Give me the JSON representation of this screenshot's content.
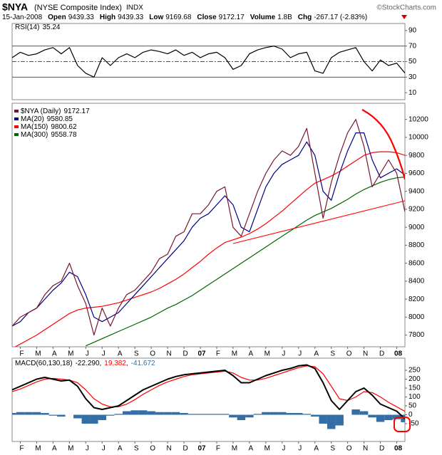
{
  "header": {
    "symbol": "$NYA",
    "name": "(NYSE Composite Index)",
    "exchange": "INDX",
    "date": "15-Jan-2008",
    "quote": [
      {
        "label": "Open",
        "value": "9439.33"
      },
      {
        "label": "High",
        "value": "9439.33"
      },
      {
        "label": "Low",
        "value": "9169.68"
      },
      {
        "label": "Close",
        "value": "9172.17"
      },
      {
        "label": "Volume",
        "value": "1.8B"
      },
      {
        "label": "Chg",
        "value": "-267.17 (-2.83%)"
      }
    ],
    "copyright": "©StockCharts.com"
  },
  "chart_data": [
    {
      "type": "line",
      "title": "RSI(14)",
      "ylim": [
        1,
        99
      ],
      "yticks": [
        90,
        70,
        50,
        30,
        10
      ],
      "levels": [
        70,
        50,
        30
      ],
      "series": [
        {
          "color": "#000000",
          "values": [
            55,
            62,
            58,
            60,
            65,
            68,
            60,
            68,
            45,
            35,
            30,
            55,
            45,
            55,
            60,
            55,
            62,
            65,
            63,
            60,
            65,
            58,
            62,
            55,
            60,
            62,
            55,
            40,
            45,
            60,
            65,
            68,
            70,
            66,
            55,
            60,
            62,
            38,
            35,
            55,
            62,
            65,
            68,
            50,
            38,
            52,
            45,
            48,
            35.24
          ]
        }
      ]
    },
    {
      "type": "line",
      "ylim": [
        7670,
        10380
      ],
      "yticks": [
        7800,
        8000,
        8200,
        8400,
        8600,
        8800,
        9000,
        9200,
        9400,
        9600,
        9800,
        10000,
        10200
      ],
      "x_labels": [
        "F",
        "M",
        "A",
        "M",
        "J",
        "J",
        "A",
        "S",
        "O",
        "N",
        "D",
        "07",
        "F",
        "M",
        "A",
        "M",
        "J",
        "J",
        "A",
        "S",
        "O",
        "N",
        "D",
        "08"
      ],
      "series": [
        {
          "name": "$NYA (Daily)",
          "color": "#7a1530",
          "values": [
            7900,
            8000,
            8050,
            8100,
            8250,
            8350,
            8400,
            8600,
            8350,
            8150,
            7800,
            8100,
            7900,
            8100,
            8250,
            8300,
            8400,
            8500,
            8650,
            8700,
            8900,
            8950,
            9150,
            9150,
            9250,
            9400,
            9450,
            9000,
            8900,
            9150,
            9400,
            9600,
            9750,
            9850,
            9800,
            9900,
            10100,
            9600,
            9100,
            9500,
            9800,
            10050,
            10200,
            9900,
            9450,
            9600,
            9750,
            9600,
            9172.17
          ]
        },
        {
          "name": "MA(20)",
          "color": "#000080",
          "values": [
            7900,
            7950,
            8050,
            8100,
            8200,
            8300,
            8380,
            8500,
            8450,
            8250,
            8000,
            7950,
            8000,
            8050,
            8150,
            8250,
            8350,
            8450,
            8550,
            8650,
            8750,
            8850,
            9000,
            9100,
            9150,
            9250,
            9350,
            9250,
            9000,
            8950,
            9200,
            9450,
            9600,
            9700,
            9750,
            9800,
            9950,
            9800,
            9400,
            9300,
            9600,
            9850,
            10050,
            10050,
            9750,
            9550,
            9600,
            9650,
            9580.85
          ]
        },
        {
          "name": "MA(150)",
          "color": "#ff0000",
          "values": [
            7650,
            7700,
            7750,
            7800,
            7860,
            7920,
            7980,
            8040,
            8080,
            8100,
            8110,
            8120,
            8140,
            8160,
            8190,
            8220,
            8250,
            8280,
            8320,
            8370,
            8420,
            8480,
            8550,
            8620,
            8700,
            8770,
            8830,
            8860,
            8890,
            8930,
            8980,
            9040,
            9110,
            9180,
            9260,
            9340,
            9420,
            9490,
            9530,
            9570,
            9620,
            9680,
            9740,
            9800,
            9830,
            9840,
            9840,
            9830,
            9800.62
          ]
        },
        {
          "name": "MA(300)",
          "color": "#006400",
          "values": [
            null,
            null,
            null,
            null,
            null,
            null,
            null,
            null,
            null,
            7680,
            7720,
            7760,
            7800,
            7840,
            7880,
            7920,
            7960,
            8000,
            8050,
            8100,
            8140,
            8190,
            8240,
            8300,
            8360,
            8420,
            8480,
            8540,
            8600,
            8660,
            8720,
            8780,
            8840,
            8900,
            8960,
            9020,
            9080,
            9130,
            9170,
            9210,
            9260,
            9310,
            9370,
            9420,
            9460,
            9500,
            9530,
            9550,
            9558.78
          ]
        }
      ]
    },
    {
      "type": "line",
      "title": "MACD(60,130,18)",
      "legend_separator": ",",
      "ylim": [
        -150,
        318
      ],
      "yticks": [
        -50,
        0,
        50,
        100,
        150,
        200,
        250
      ],
      "x_labels": [
        "F",
        "M",
        "A",
        "M",
        "J",
        "J",
        "A",
        "S",
        "O",
        "N",
        "D",
        "07",
        "F",
        "M",
        "A",
        "M",
        "J",
        "J",
        "A",
        "S",
        "O",
        "N",
        "D",
        "08"
      ],
      "series": [
        {
          "color": "#336ea6",
          "style": "bar",
          "last_label": "-41.672",
          "values": [
            10,
            15,
            15,
            15,
            10,
            -5,
            -10,
            0,
            -20,
            -50,
            -50,
            -30,
            -5,
            5,
            20,
            25,
            25,
            20,
            15,
            15,
            15,
            10,
            5,
            5,
            5,
            5,
            5,
            -15,
            -30,
            -15,
            5,
            15,
            15,
            15,
            10,
            10,
            5,
            -10,
            -50,
            -80,
            -60,
            0,
            30,
            20,
            -15,
            -40,
            -30,
            -25,
            -41.672
          ]
        },
        {
          "color": "#000000",
          "last_label": "-22.290",
          "values": [
            140,
            160,
            180,
            200,
            210,
            200,
            190,
            195,
            160,
            90,
            40,
            30,
            40,
            50,
            80,
            110,
            140,
            160,
            180,
            200,
            215,
            225,
            230,
            235,
            240,
            245,
            250,
            220,
            180,
            180,
            200,
            220,
            235,
            250,
            260,
            275,
            280,
            260,
            180,
            80,
            30,
            80,
            130,
            150,
            110,
            60,
            40,
            20,
            -22.29
          ]
        },
        {
          "color": "#ff0000",
          "last_label": "19.382",
          "values": [
            130,
            145,
            165,
            185,
            200,
            205,
            200,
            195,
            180,
            140,
            90,
            60,
            45,
            45,
            60,
            85,
            115,
            140,
            165,
            185,
            200,
            215,
            225,
            230,
            235,
            240,
            245,
            235,
            210,
            195,
            195,
            205,
            220,
            235,
            250,
            265,
            275,
            270,
            230,
            160,
            90,
            80,
            100,
            130,
            125,
            100,
            70,
            45,
            19.382
          ]
        }
      ]
    }
  ]
}
